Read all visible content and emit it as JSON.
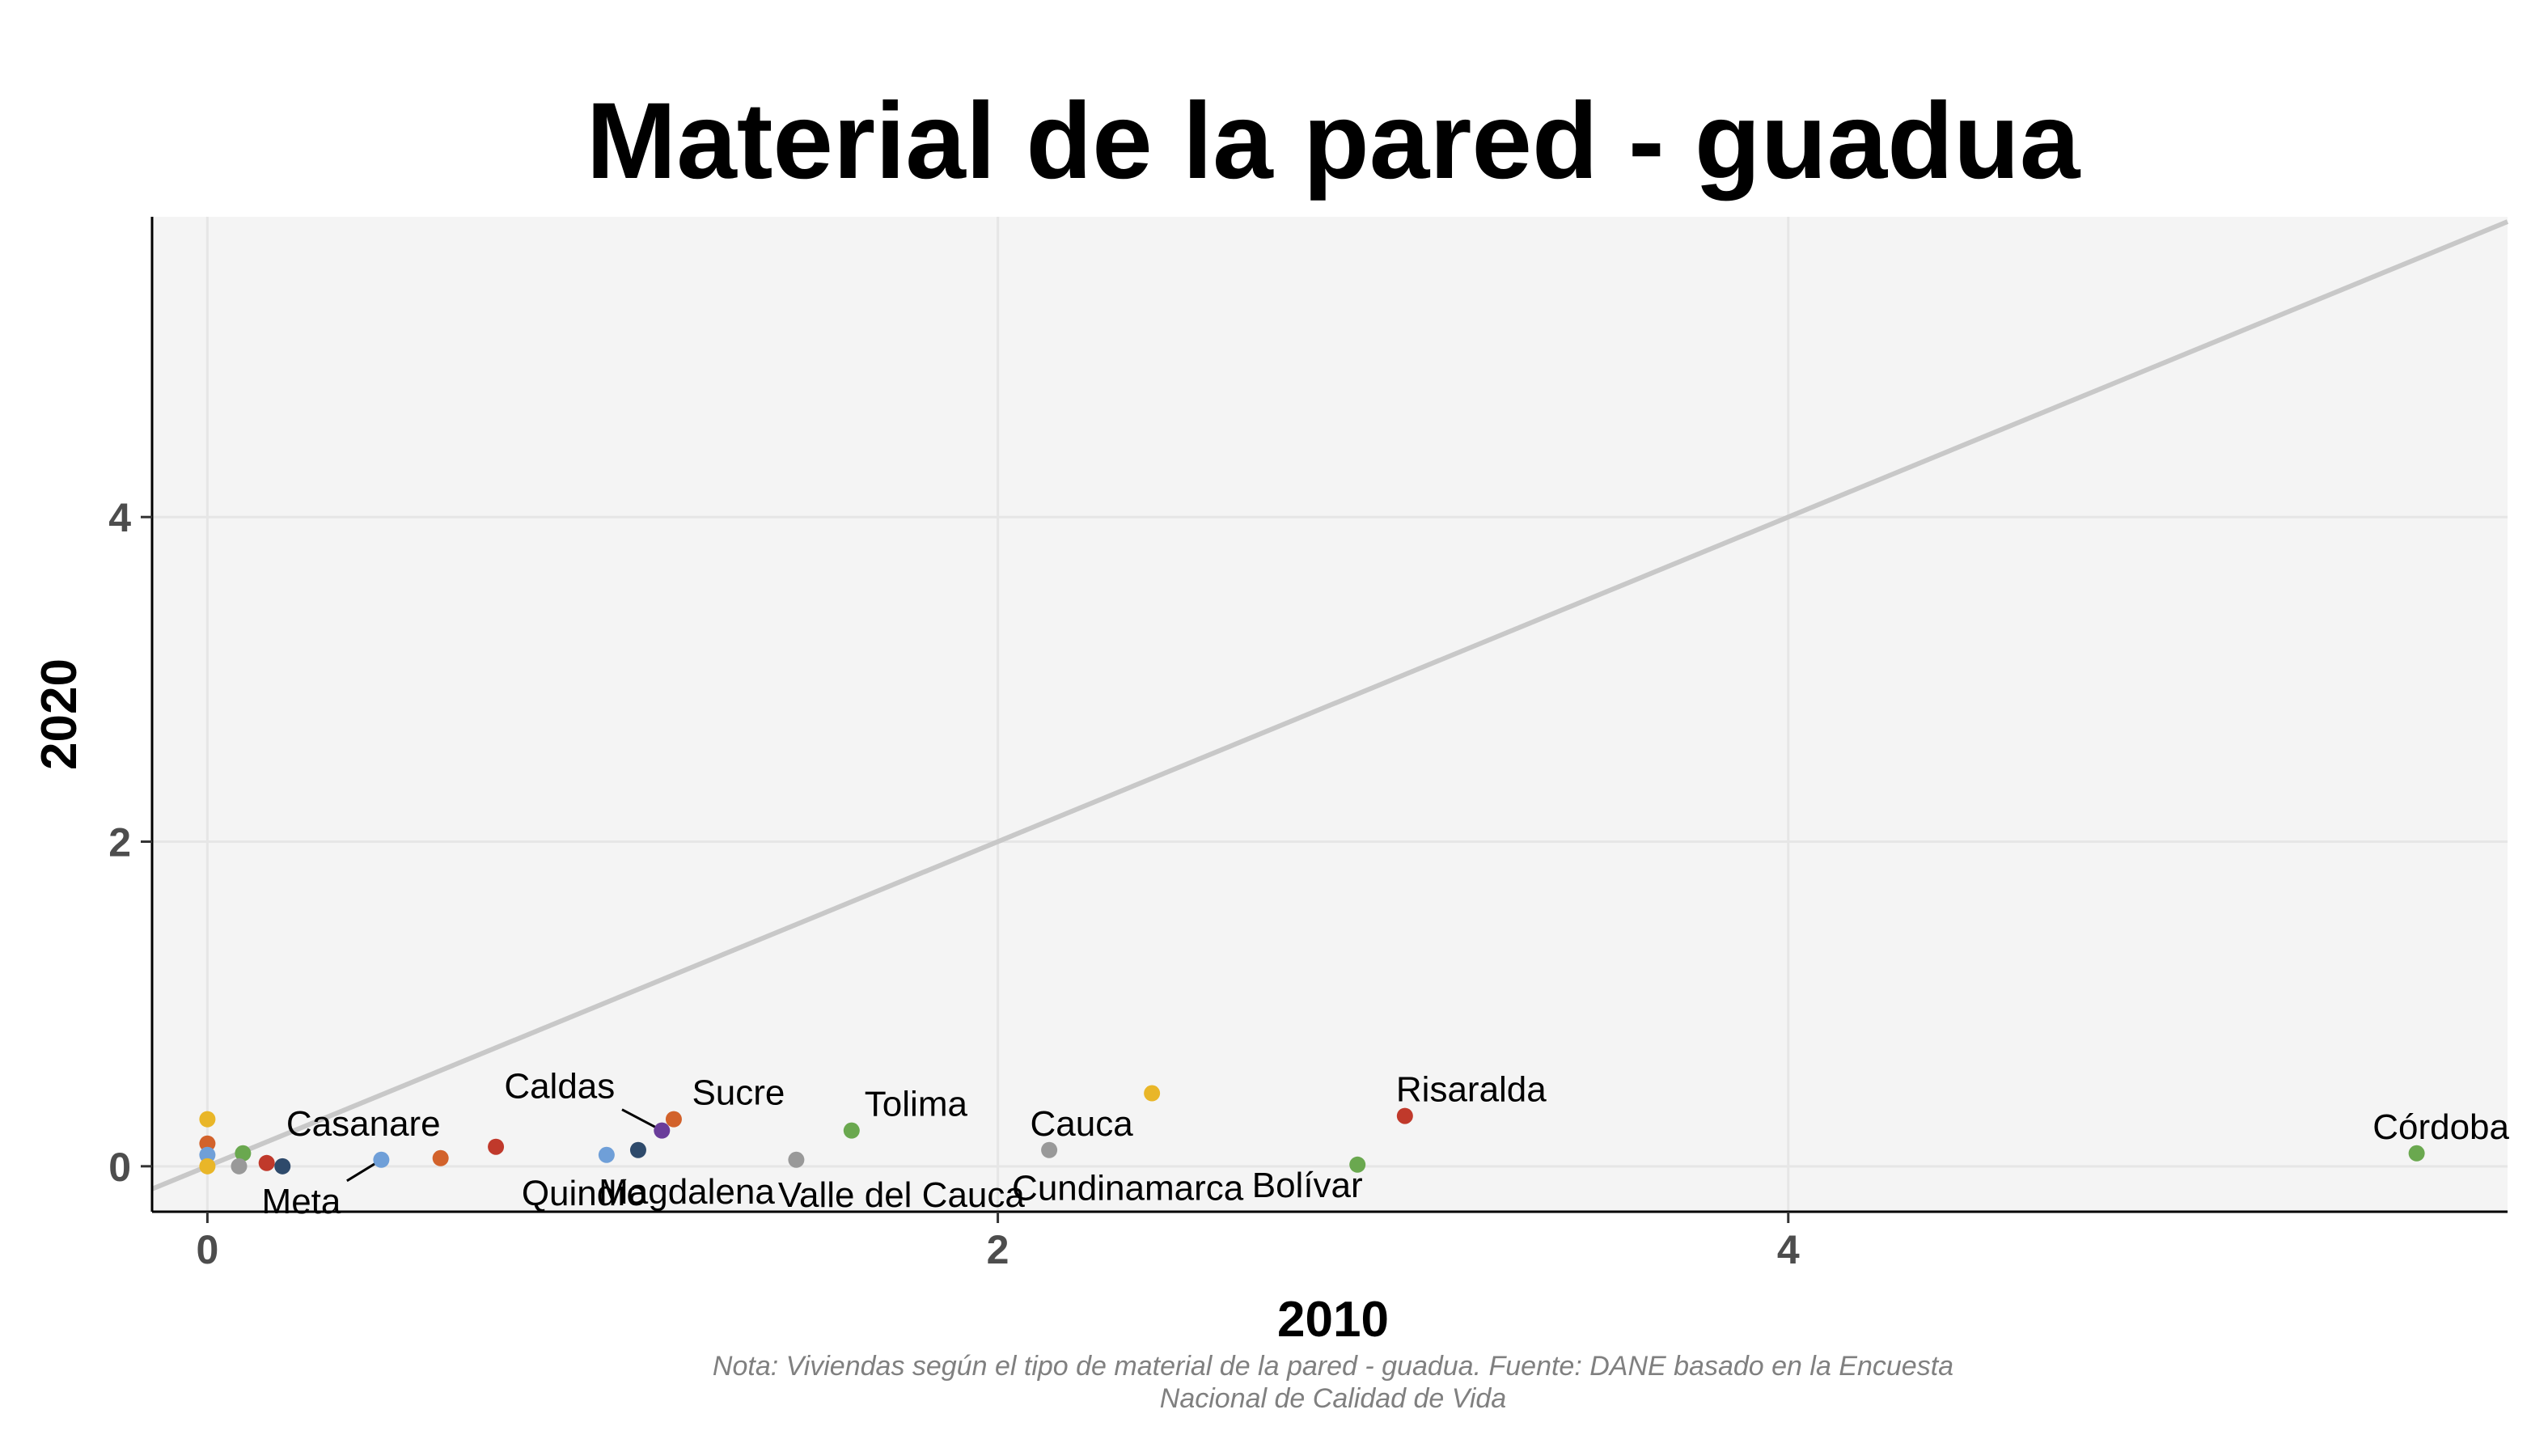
{
  "chart_data": {
    "type": "scatter",
    "title": "Material de la pared - guadua",
    "xlabel": "2010",
    "ylabel": "2020",
    "xlim": [
      -0.14,
      5.82
    ],
    "ylim": [
      -0.28,
      5.85
    ],
    "x_ticks": [
      0,
      2,
      4
    ],
    "y_ticks": [
      0,
      2,
      4
    ],
    "grid": true,
    "reference_line": "y = x",
    "caption_lines": [
      "Nota: Viviendas según el tipo de material de la pared - guadua. Fuente: DANE basado en la Encuesta",
      "Nacional de Calidad de Vida"
    ],
    "points": [
      {
        "label": "",
        "x": 0.0,
        "y": 0.29,
        "color": "#E9B628"
      },
      {
        "label": "",
        "x": 0.0,
        "y": 0.14,
        "color": "#D2622B"
      },
      {
        "label": "",
        "x": 0.0,
        "y": 0.07,
        "color": "#6F9FD8"
      },
      {
        "label": "",
        "x": 0.0,
        "y": 0.0,
        "color": "#E9B628"
      },
      {
        "label": "",
        "x": 0.09,
        "y": 0.08,
        "color": "#6AA84F"
      },
      {
        "label": "",
        "x": 0.08,
        "y": 0.0,
        "color": "#999999"
      },
      {
        "label": "",
        "x": 0.15,
        "y": 0.02,
        "color": "#C0392B"
      },
      {
        "label": "",
        "x": 0.19,
        "y": 0.0,
        "color": "#2E4A6B"
      },
      {
        "label": "Meta",
        "x": 0.44,
        "y": 0.04,
        "color": "#6F9FD8"
      },
      {
        "label": "Casanare",
        "x": 0.59,
        "y": 0.05,
        "color": "#D2622B"
      },
      {
        "label": "",
        "x": 0.73,
        "y": 0.12,
        "color": "#C0392B"
      },
      {
        "label": "Quindío",
        "x": 1.01,
        "y": 0.07,
        "color": "#6F9FD8"
      },
      {
        "label": "Magdalena",
        "x": 1.09,
        "y": 0.1,
        "color": "#2E4A6B"
      },
      {
        "label": "Caldas",
        "x": 1.15,
        "y": 0.22,
        "color": "#6A3D9A"
      },
      {
        "label": "Sucre",
        "x": 1.18,
        "y": 0.29,
        "color": "#D2622B"
      },
      {
        "label": "Valle del Cauca",
        "x": 1.49,
        "y": 0.04,
        "color": "#999999"
      },
      {
        "label": "Tolima",
        "x": 1.63,
        "y": 0.22,
        "color": "#6AA84F"
      },
      {
        "label": "Cauca",
        "x": 2.13,
        "y": 0.1,
        "color": "#999999"
      },
      {
        "label": "Cundinamarca",
        "x": 2.39,
        "y": 0.45,
        "color": "#E9B628"
      },
      {
        "label": "Bolívar",
        "x": 2.91,
        "y": 0.01,
        "color": "#6AA84F"
      },
      {
        "label": "Risaralda",
        "x": 3.03,
        "y": 0.31,
        "color": "#C0392B"
      },
      {
        "label": "Córdoba",
        "x": 5.59,
        "y": 0.08,
        "color": "#6AA84F"
      }
    ]
  }
}
